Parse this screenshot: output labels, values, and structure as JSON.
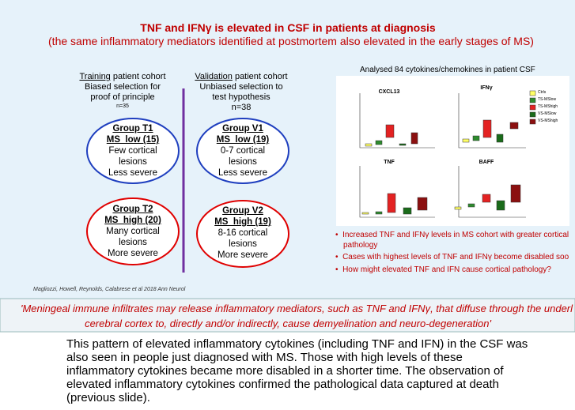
{
  "header": {
    "title": "TNF and IFNγ is elevated in CSF in patients at diagnosis",
    "subtitle": "(the same inflammatory mediators identified at postmortem also elevated in the early stages of MS)"
  },
  "training": {
    "heading": "Training",
    "heading_rest": " patient cohort",
    "lines": [
      "Biased selection for",
      "proof of principle"
    ],
    "n": "n=35"
  },
  "validation": {
    "heading": "Validation",
    "heading_rest": " patient cohort",
    "lines": [
      "Unbiased selection to",
      "test hypothesis"
    ],
    "n": "n=38"
  },
  "groups": [
    {
      "name": "Group T1",
      "label": "MS_low (15)",
      "lines": [
        "Few cortical",
        "lesions",
        "Less severe"
      ]
    },
    {
      "name": "Group V1",
      "label": "MS_low (19)",
      "lines": [
        "0-7 cortical",
        "lesions",
        "Less severe"
      ]
    },
    {
      "name": "Group T2",
      "label": "MS_high (20)",
      "lines": [
        "Many cortical",
        "lesions",
        "More severe"
      ]
    },
    {
      "name": "Group V2",
      "label": "MS_high (19)",
      "lines": [
        "8-16 cortical",
        "lesions",
        "More severe"
      ]
    }
  ],
  "citation": "Magliozzi, Howell, Reynolds, Calabrese et al 2018 Ann Neurol",
  "figure": {
    "title": "Analysed 84 cytokines/chemokines in patient CSF",
    "panels": [
      "CXCL13",
      "IFNγ",
      "TNF",
      "BAFF"
    ],
    "legend": [
      "Ctrls",
      "TS-MSlow",
      "TS-MShigh",
      "VS-MSlow",
      "VS-MShigh"
    ]
  },
  "bullets": [
    "Increased TNF and IFNγ levels in MS cohort with greater cortical",
    "pathology",
    "Cases with highest levels of TNF and IFNγ become disabled soo",
    "How might elevated TNF and IFN cause cortical pathology?"
  ],
  "quote": [
    "'Meningeal immune infiltrates may release inflammatory mediators, such as TNF and IFNγ, that diffuse through the underl",
    "cerebral cortex to, directly and/or indirectly, cause demyelination and neuro-degeneration'"
  ],
  "notes": [
    "This pattern of elevated inflammatory cytokines (including TNF and IFN) in the CSF was",
    "also seen in people just diagnosed with MS. Those with high levels of these",
    "inflammatory cytokines became more disabled in a shorter time. The observation of",
    "elevated inflammatory cytokines confirmed the pathological data captured at death",
    "(previous slide)."
  ]
}
